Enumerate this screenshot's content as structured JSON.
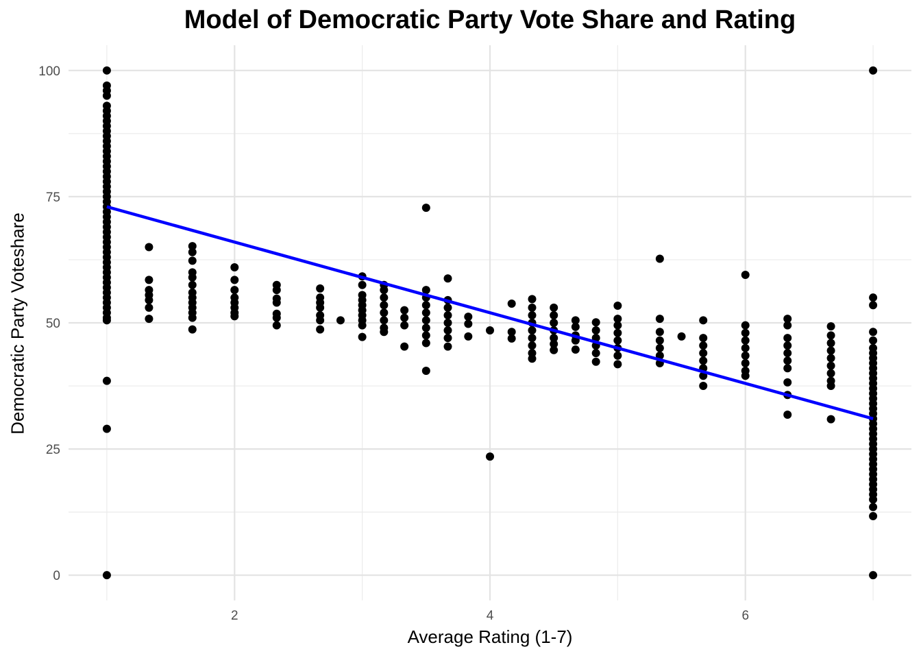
{
  "chart_data": {
    "type": "scatter",
    "title": "Model of Democratic Party Vote Share and Rating",
    "xlabel": "Average Rating (1-7)",
    "ylabel": "Democratic Party Voteshare",
    "xlim": [
      0.7,
      7.3
    ],
    "ylim": [
      -5,
      105
    ],
    "x_ticks": [
      2,
      4,
      6
    ],
    "y_ticks": [
      0,
      25,
      50,
      75,
      100
    ],
    "grid": true,
    "point_color": "#000000",
    "line_color": "#0000ff",
    "regression_line": {
      "x": [
        1,
        7
      ],
      "y": [
        73,
        31
      ]
    },
    "points": [
      [
        1,
        100
      ],
      [
        1,
        97
      ],
      [
        1,
        96
      ],
      [
        1,
        95
      ],
      [
        1,
        93
      ],
      [
        1,
        92
      ],
      [
        1,
        91
      ],
      [
        1,
        90
      ],
      [
        1,
        89
      ],
      [
        1,
        88
      ],
      [
        1,
        87
      ],
      [
        1,
        86
      ],
      [
        1,
        85
      ],
      [
        1,
        84
      ],
      [
        1,
        83
      ],
      [
        1,
        82
      ],
      [
        1,
        81
      ],
      [
        1,
        80
      ],
      [
        1,
        79
      ],
      [
        1,
        78
      ],
      [
        1,
        77
      ],
      [
        1,
        76
      ],
      [
        1,
        75
      ],
      [
        1,
        74
      ],
      [
        1,
        73
      ],
      [
        1,
        72
      ],
      [
        1,
        71
      ],
      [
        1,
        70
      ],
      [
        1,
        69
      ],
      [
        1,
        68
      ],
      [
        1,
        67
      ],
      [
        1,
        66
      ],
      [
        1,
        65
      ],
      [
        1,
        64
      ],
      [
        1,
        63
      ],
      [
        1,
        62
      ],
      [
        1,
        61
      ],
      [
        1,
        60
      ],
      [
        1,
        59
      ],
      [
        1,
        58
      ],
      [
        1,
        57
      ],
      [
        1,
        56
      ],
      [
        1,
        55
      ],
      [
        1,
        54
      ],
      [
        1,
        53
      ],
      [
        1,
        52
      ],
      [
        1,
        51
      ],
      [
        1,
        50.5
      ],
      [
        1,
        38.5
      ],
      [
        1,
        29
      ],
      [
        1,
        0
      ],
      [
        1.33,
        65
      ],
      [
        1.33,
        58.5
      ],
      [
        1.33,
        56.5
      ],
      [
        1.33,
        55.5
      ],
      [
        1.33,
        54.5
      ],
      [
        1.33,
        53
      ],
      [
        1.33,
        50.8
      ],
      [
        1.67,
        65.2
      ],
      [
        1.67,
        64
      ],
      [
        1.67,
        62.3
      ],
      [
        1.67,
        60
      ],
      [
        1.67,
        59
      ],
      [
        1.67,
        57.5
      ],
      [
        1.67,
        56
      ],
      [
        1.67,
        55
      ],
      [
        1.67,
        54
      ],
      [
        1.67,
        53
      ],
      [
        1.67,
        52
      ],
      [
        1.67,
        51
      ],
      [
        1.67,
        48.7
      ],
      [
        2,
        61
      ],
      [
        2,
        58.5
      ],
      [
        2,
        56.5
      ],
      [
        2,
        55
      ],
      [
        2,
        54
      ],
      [
        2,
        53
      ],
      [
        2,
        52
      ],
      [
        2,
        51.3
      ],
      [
        2.33,
        57.5
      ],
      [
        2.33,
        56.5
      ],
      [
        2.33,
        54.8
      ],
      [
        2.33,
        54
      ],
      [
        2.33,
        51.8
      ],
      [
        2.33,
        51
      ],
      [
        2.33,
        49.5
      ],
      [
        2.67,
        56.8
      ],
      [
        2.67,
        55
      ],
      [
        2.67,
        54
      ],
      [
        2.67,
        53
      ],
      [
        2.67,
        51.5
      ],
      [
        2.67,
        50.5
      ],
      [
        2.67,
        48.7
      ],
      [
        2.83,
        50.5
      ],
      [
        3,
        59.2
      ],
      [
        3,
        57.5
      ],
      [
        3,
        55.5
      ],
      [
        3,
        54.5
      ],
      [
        3,
        53.5
      ],
      [
        3,
        52.5
      ],
      [
        3,
        51.5
      ],
      [
        3,
        50.5
      ],
      [
        3,
        49.5
      ],
      [
        3,
        47.2
      ],
      [
        3.17,
        57.5
      ],
      [
        3.17,
        56.5
      ],
      [
        3.17,
        55
      ],
      [
        3.17,
        53.5
      ],
      [
        3.17,
        52
      ],
      [
        3.17,
        50.5
      ],
      [
        3.17,
        49
      ],
      [
        3.17,
        48.2
      ],
      [
        3.33,
        52.5
      ],
      [
        3.33,
        51
      ],
      [
        3.33,
        49.5
      ],
      [
        3.33,
        45.3
      ],
      [
        3.5,
        72.8
      ],
      [
        3.5,
        56.5
      ],
      [
        3.5,
        55
      ],
      [
        3.5,
        53.5
      ],
      [
        3.5,
        52
      ],
      [
        3.5,
        50.5
      ],
      [
        3.5,
        49
      ],
      [
        3.5,
        47.5
      ],
      [
        3.5,
        46
      ],
      [
        3.5,
        40.5
      ],
      [
        3.67,
        58.8
      ],
      [
        3.67,
        54.5
      ],
      [
        3.67,
        53
      ],
      [
        3.67,
        51.5
      ],
      [
        3.67,
        50
      ],
      [
        3.67,
        48.5
      ],
      [
        3.67,
        47
      ],
      [
        3.67,
        45.3
      ],
      [
        3.83,
        51.2
      ],
      [
        3.83,
        49.8
      ],
      [
        3.83,
        47.3
      ],
      [
        4,
        48.5
      ],
      [
        4,
        23.5
      ],
      [
        4.17,
        53.8
      ],
      [
        4.17,
        48.2
      ],
      [
        4.17,
        46.9
      ],
      [
        4.33,
        54.7
      ],
      [
        4.33,
        53
      ],
      [
        4.33,
        51.5
      ],
      [
        4.33,
        50
      ],
      [
        4.33,
        48.5
      ],
      [
        4.33,
        47
      ],
      [
        4.33,
        45.5
      ],
      [
        4.33,
        44
      ],
      [
        4.33,
        42.9
      ],
      [
        4.5,
        53
      ],
      [
        4.5,
        51.5
      ],
      [
        4.5,
        50
      ],
      [
        4.5,
        48.5
      ],
      [
        4.5,
        47
      ],
      [
        4.5,
        45.8
      ],
      [
        4.5,
        44.6
      ],
      [
        4.67,
        50.5
      ],
      [
        4.67,
        49.2
      ],
      [
        4.67,
        47.5
      ],
      [
        4.67,
        46.5
      ],
      [
        4.67,
        44.7
      ],
      [
        4.83,
        50.1
      ],
      [
        4.83,
        48.5
      ],
      [
        4.83,
        47
      ],
      [
        4.83,
        45.5
      ],
      [
        4.83,
        44
      ],
      [
        4.83,
        42.3
      ],
      [
        5,
        53.4
      ],
      [
        5,
        50.8
      ],
      [
        5,
        49.5
      ],
      [
        5,
        48
      ],
      [
        5,
        46.5
      ],
      [
        5,
        45
      ],
      [
        5,
        43.5
      ],
      [
        5,
        41.8
      ],
      [
        5.33,
        62.7
      ],
      [
        5.33,
        50.8
      ],
      [
        5.33,
        48.2
      ],
      [
        5.33,
        46.5
      ],
      [
        5.33,
        45
      ],
      [
        5.33,
        43.5
      ],
      [
        5.33,
        42
      ],
      [
        5.5,
        47.3
      ],
      [
        5.67,
        50.5
      ],
      [
        5.67,
        47
      ],
      [
        5.67,
        45.5
      ],
      [
        5.67,
        44
      ],
      [
        5.67,
        42.5
      ],
      [
        5.67,
        41
      ],
      [
        5.67,
        39.5
      ],
      [
        5.67,
        37.5
      ],
      [
        6,
        59.5
      ],
      [
        6,
        49.5
      ],
      [
        6,
        48
      ],
      [
        6,
        46.5
      ],
      [
        6,
        45
      ],
      [
        6,
        43.5
      ],
      [
        6,
        42
      ],
      [
        6,
        40.5
      ],
      [
        6,
        39.5
      ],
      [
        6.33,
        50.8
      ],
      [
        6.33,
        49.5
      ],
      [
        6.33,
        47
      ],
      [
        6.33,
        45.5
      ],
      [
        6.33,
        44
      ],
      [
        6.33,
        42.5
      ],
      [
        6.33,
        41
      ],
      [
        6.33,
        38.2
      ],
      [
        6.33,
        35.7
      ],
      [
        6.33,
        31.8
      ],
      [
        6.67,
        49.3
      ],
      [
        6.67,
        47.5
      ],
      [
        6.67,
        46
      ],
      [
        6.67,
        44.5
      ],
      [
        6.67,
        43
      ],
      [
        6.67,
        41.5
      ],
      [
        6.67,
        40
      ],
      [
        6.67,
        38.5
      ],
      [
        6.67,
        37.5
      ],
      [
        6.67,
        30.9
      ],
      [
        7,
        100
      ],
      [
        7,
        55
      ],
      [
        7,
        53.5
      ],
      [
        7,
        48.2
      ],
      [
        7,
        46.5
      ],
      [
        7,
        45
      ],
      [
        7,
        44
      ],
      [
        7,
        43
      ],
      [
        7,
        42
      ],
      [
        7,
        41
      ],
      [
        7,
        40
      ],
      [
        7,
        39
      ],
      [
        7,
        38
      ],
      [
        7,
        37
      ],
      [
        7,
        36
      ],
      [
        7,
        35
      ],
      [
        7,
        34
      ],
      [
        7,
        33
      ],
      [
        7,
        32
      ],
      [
        7,
        31
      ],
      [
        7,
        30
      ],
      [
        7,
        29
      ],
      [
        7,
        28
      ],
      [
        7,
        27
      ],
      [
        7,
        26
      ],
      [
        7,
        25
      ],
      [
        7,
        24
      ],
      [
        7,
        23
      ],
      [
        7,
        22
      ],
      [
        7,
        21
      ],
      [
        7,
        20
      ],
      [
        7,
        19
      ],
      [
        7,
        18
      ],
      [
        7,
        17
      ],
      [
        7,
        16
      ],
      [
        7,
        15
      ],
      [
        7,
        13.5
      ],
      [
        7,
        11.7
      ],
      [
        7,
        0
      ]
    ]
  }
}
